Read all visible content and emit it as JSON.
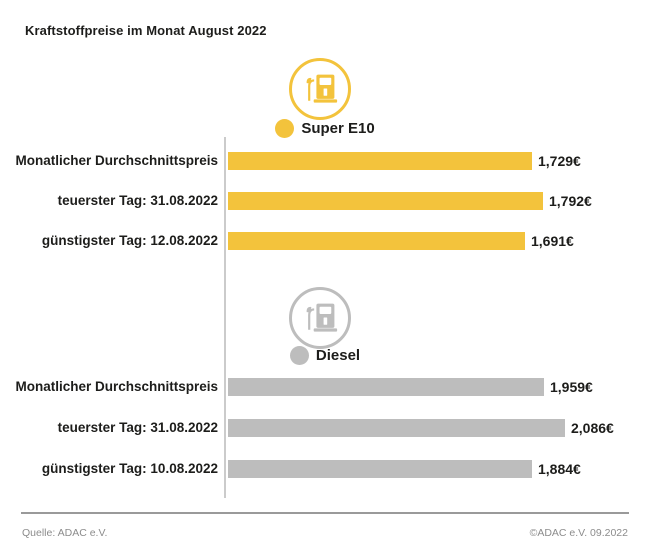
{
  "title": "Kraftstoffpreise im Monat August 2022",
  "colors": {
    "super_e10": "#F3C33C",
    "diesel": "#BDBDBD",
    "text": "#1D1D1B",
    "axis_line": "#CBCBCB",
    "footer_text": "#8C8C8C"
  },
  "chart_data": {
    "type": "bar",
    "orientation": "horizontal",
    "unit": "EUR per liter",
    "title": "Kraftstoffpreise im Monat August 2022",
    "sections": [
      {
        "fuel": "Super E10",
        "color": "#F3C33C",
        "icon": "fuel-pump-icon",
        "rows": [
          {
            "label": "Monatlicher Durchschnittspreis",
            "value": 1.729,
            "display": "1,729€"
          },
          {
            "label": "teuerster Tag: 31.08.2022",
            "value": 1.792,
            "display": "1,792€"
          },
          {
            "label": "günstigster Tag: 12.08.2022",
            "value": 1.691,
            "display": "1,691€"
          }
        ]
      },
      {
        "fuel": "Diesel",
        "color": "#BDBDBD",
        "icon": "fuel-pump-icon",
        "rows": [
          {
            "label": "Monatlicher Durchschnittspreis",
            "value": 1.959,
            "display": "1,959€"
          },
          {
            "label": "teuerster Tag: 31.08.2022",
            "value": 2.086,
            "display": "2,086€"
          },
          {
            "label": "günstigster Tag: 10.08.2022",
            "value": 1.884,
            "display": "1,884€"
          }
        ]
      }
    ]
  },
  "footer": {
    "source": "Quelle: ADAC e.V.",
    "copyright": "©ADAC e.V. 09.2022"
  }
}
